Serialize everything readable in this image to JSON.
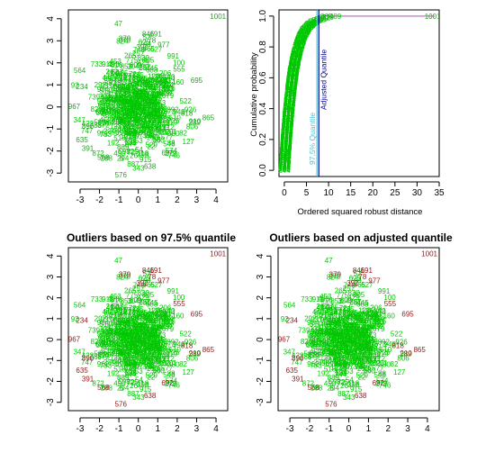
{
  "colors": {
    "green_points": "#00c800",
    "green_labels": "#2e9a2e",
    "outlier_labels": "#8b1a1a",
    "adjusted_line": "#000080",
    "quantile_line": "#4fc3d6",
    "ecdf_line": "#c86fc8"
  },
  "chart_data": [
    {
      "type": "scatter",
      "panel": "top-left",
      "title": "",
      "xlabel": "",
      "ylabel": "",
      "xlim": [
        -3.6,
        4.6
      ],
      "ylim": [
        -3.4,
        4.4
      ],
      "xticks": [
        "-3",
        "-2",
        "-1",
        "0",
        "1",
        "2",
        "3",
        "4"
      ],
      "yticks": [
        "-3",
        "-2",
        "-1",
        "0",
        "1",
        "2",
        "3",
        "4"
      ],
      "point_label_color": "green",
      "labeled_points": [
        {
          "label": "1001",
          "x": 4.1,
          "y": 4.0
        },
        {
          "label": "846",
          "x": 0.5,
          "y": 3.2
        },
        {
          "label": "191",
          "x": 0.9,
          "y": 3.2
        },
        {
          "label": "78",
          "x": 0.7,
          "y": 2.9
        },
        {
          "label": "977",
          "x": 1.3,
          "y": 2.7
        },
        {
          "label": "379",
          "x": -0.7,
          "y": 3.0
        },
        {
          "label": "392",
          "x": 0.2,
          "y": 2.6
        },
        {
          "label": "555",
          "x": 2.1,
          "y": 1.6
        },
        {
          "label": "695",
          "x": 3.0,
          "y": 1.1
        },
        {
          "label": "234",
          "x": -2.9,
          "y": 0.8
        },
        {
          "label": "967",
          "x": -3.3,
          "y": -0.1
        },
        {
          "label": "865",
          "x": 3.6,
          "y": -0.6
        },
        {
          "label": "890",
          "x": -2.6,
          "y": -1.0
        },
        {
          "label": "635",
          "x": -2.9,
          "y": -1.6
        },
        {
          "label": "391",
          "x": -2.6,
          "y": -2.0
        },
        {
          "label": "568",
          "x": -1.8,
          "y": -2.4
        },
        {
          "label": "576",
          "x": -0.9,
          "y": -3.2
        },
        {
          "label": "638",
          "x": 0.6,
          "y": -2.8
        },
        {
          "label": "692",
          "x": 1.5,
          "y": -2.2
        },
        {
          "label": "818",
          "x": 2.5,
          "y": -0.4
        },
        {
          "label": "289",
          "x": 2.9,
          "y": -0.8
        }
      ]
    },
    {
      "type": "line",
      "panel": "top-right",
      "title": "",
      "xlabel": "Ordered squared robust distance",
      "ylabel": "Cumulative probability",
      "xlim": [
        -1.2,
        35
      ],
      "ylim": [
        -0.04,
        1.04
      ],
      "xticks": [
        "0",
        "5",
        "10",
        "15",
        "20",
        "25",
        "30",
        "35"
      ],
      "yticks": [
        "0.0",
        "0.2",
        "0.4",
        "0.6",
        "0.8",
        "1.0"
      ],
      "quantile_975": 7.38,
      "adjusted_quantile": 7.8,
      "annotations": [
        "97.5% Quantile",
        "Adjusted Quantile",
        "865",
        "1001"
      ],
      "series": [
        {
          "x": [
            0,
            0.5,
            1,
            1.5,
            2,
            2.5,
            3,
            3.5,
            4,
            5,
            6,
            7,
            8,
            9,
            10,
            12,
            34
          ],
          "y": [
            0.0,
            0.22,
            0.39,
            0.53,
            0.64,
            0.72,
            0.78,
            0.83,
            0.87,
            0.92,
            0.95,
            0.97,
            0.98,
            0.99,
            0.995,
            0.999,
            1.0
          ]
        }
      ]
    },
    {
      "type": "scatter",
      "panel": "bottom-left",
      "title": "Outliers based on 97.5% quantile",
      "xlabel": "",
      "ylabel": "",
      "xlim": [
        -3.6,
        4.6
      ],
      "ylim": [
        -3.4,
        4.4
      ],
      "xticks": [
        "-3",
        "-2",
        "-1",
        "0",
        "1",
        "2",
        "3",
        "4"
      ],
      "yticks": [
        "-3",
        "-2",
        "-1",
        "0",
        "1",
        "2",
        "3",
        "4"
      ],
      "point_label_color": "red"
    },
    {
      "type": "scatter",
      "panel": "bottom-right",
      "title": "Outliers based on adjusted quantile",
      "xlabel": "",
      "ylabel": "",
      "xlim": [
        -3.6,
        4.6
      ],
      "ylim": [
        -3.4,
        4.4
      ],
      "xticks": [
        "-3",
        "-2",
        "-1",
        "0",
        "1",
        "2",
        "3",
        "4"
      ],
      "yticks": [
        "-3",
        "-2",
        "-1",
        "0",
        "1",
        "2",
        "3",
        "4"
      ],
      "point_label_color": "red"
    }
  ]
}
